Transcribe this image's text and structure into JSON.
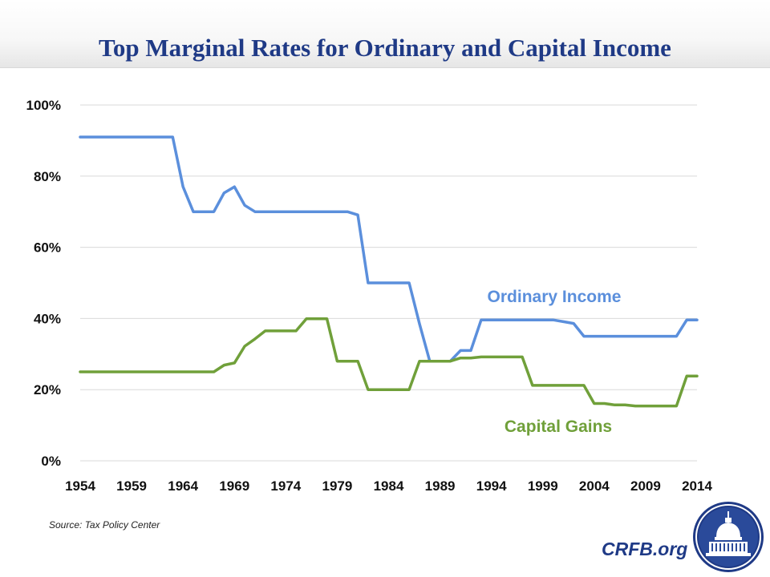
{
  "title": "Top Marginal Rates for Ordinary and Capital Income",
  "source": "Source: Tax Policy Center",
  "site": "CRFB.org",
  "logo_icon": "capitol-dome-seal-icon",
  "colors": {
    "title": "#1f3a86",
    "ordinary": "#5b8fdc",
    "capital": "#70a03a",
    "grid": "#d9d9d9"
  },
  "chart_data": {
    "type": "line",
    "x": [
      1954,
      1955,
      1956,
      1957,
      1958,
      1959,
      1960,
      1961,
      1962,
      1963,
      1964,
      1965,
      1966,
      1967,
      1968,
      1969,
      1970,
      1971,
      1972,
      1973,
      1974,
      1975,
      1976,
      1977,
      1978,
      1979,
      1980,
      1981,
      1982,
      1983,
      1984,
      1985,
      1986,
      1987,
      1988,
      1989,
      1990,
      1991,
      1992,
      1993,
      1994,
      1995,
      1996,
      1997,
      1998,
      1999,
      2000,
      2001,
      2002,
      2003,
      2004,
      2005,
      2006,
      2007,
      2008,
      2009,
      2010,
      2011,
      2012,
      2013,
      2014
    ],
    "series": [
      {
        "name": "Ordinary Income",
        "values": [
          91,
          91,
          91,
          91,
          91,
          91,
          91,
          91,
          91,
          91,
          77,
          70,
          70,
          70,
          75.3,
          77,
          71.8,
          70,
          70,
          70,
          70,
          70,
          70,
          70,
          70,
          70,
          70,
          69.1,
          50,
          50,
          50,
          50,
          50,
          38.5,
          28,
          28,
          28,
          31,
          31,
          39.6,
          39.6,
          39.6,
          39.6,
          39.6,
          39.6,
          39.6,
          39.6,
          39.1,
          38.6,
          35,
          35,
          35,
          35,
          35,
          35,
          35,
          35,
          35,
          35,
          39.6,
          39.6
        ]
      },
      {
        "name": "Capital Gains",
        "values": [
          25,
          25,
          25,
          25,
          25,
          25,
          25,
          25,
          25,
          25,
          25,
          25,
          25,
          25,
          26.9,
          27.5,
          32.2,
          34.25,
          36.5,
          36.5,
          36.5,
          36.5,
          39.9,
          39.9,
          39.9,
          28,
          28,
          28,
          20,
          20,
          20,
          20,
          20,
          28,
          28,
          28,
          28,
          28.9,
          28.9,
          29.2,
          29.2,
          29.2,
          29.2,
          29.2,
          21.2,
          21.2,
          21.2,
          21.2,
          21.2,
          21.2,
          16.1,
          16.1,
          15.7,
          15.7,
          15.4,
          15.4,
          15.4,
          15.4,
          15.4,
          23.8,
          23.8
        ]
      }
    ],
    "x_ticks": [
      "1954",
      "1959",
      "1964",
      "1969",
      "1974",
      "1979",
      "1984",
      "1989",
      "1994",
      "1999",
      "2004",
      "2009",
      "2014"
    ],
    "y_ticks": [
      "0%",
      "20%",
      "40%",
      "60%",
      "80%",
      "100%"
    ],
    "xlim": [
      1954,
      2014
    ],
    "ylim": [
      0,
      100
    ],
    "grid": "horizontal",
    "legend": "labels placed next to lines"
  }
}
